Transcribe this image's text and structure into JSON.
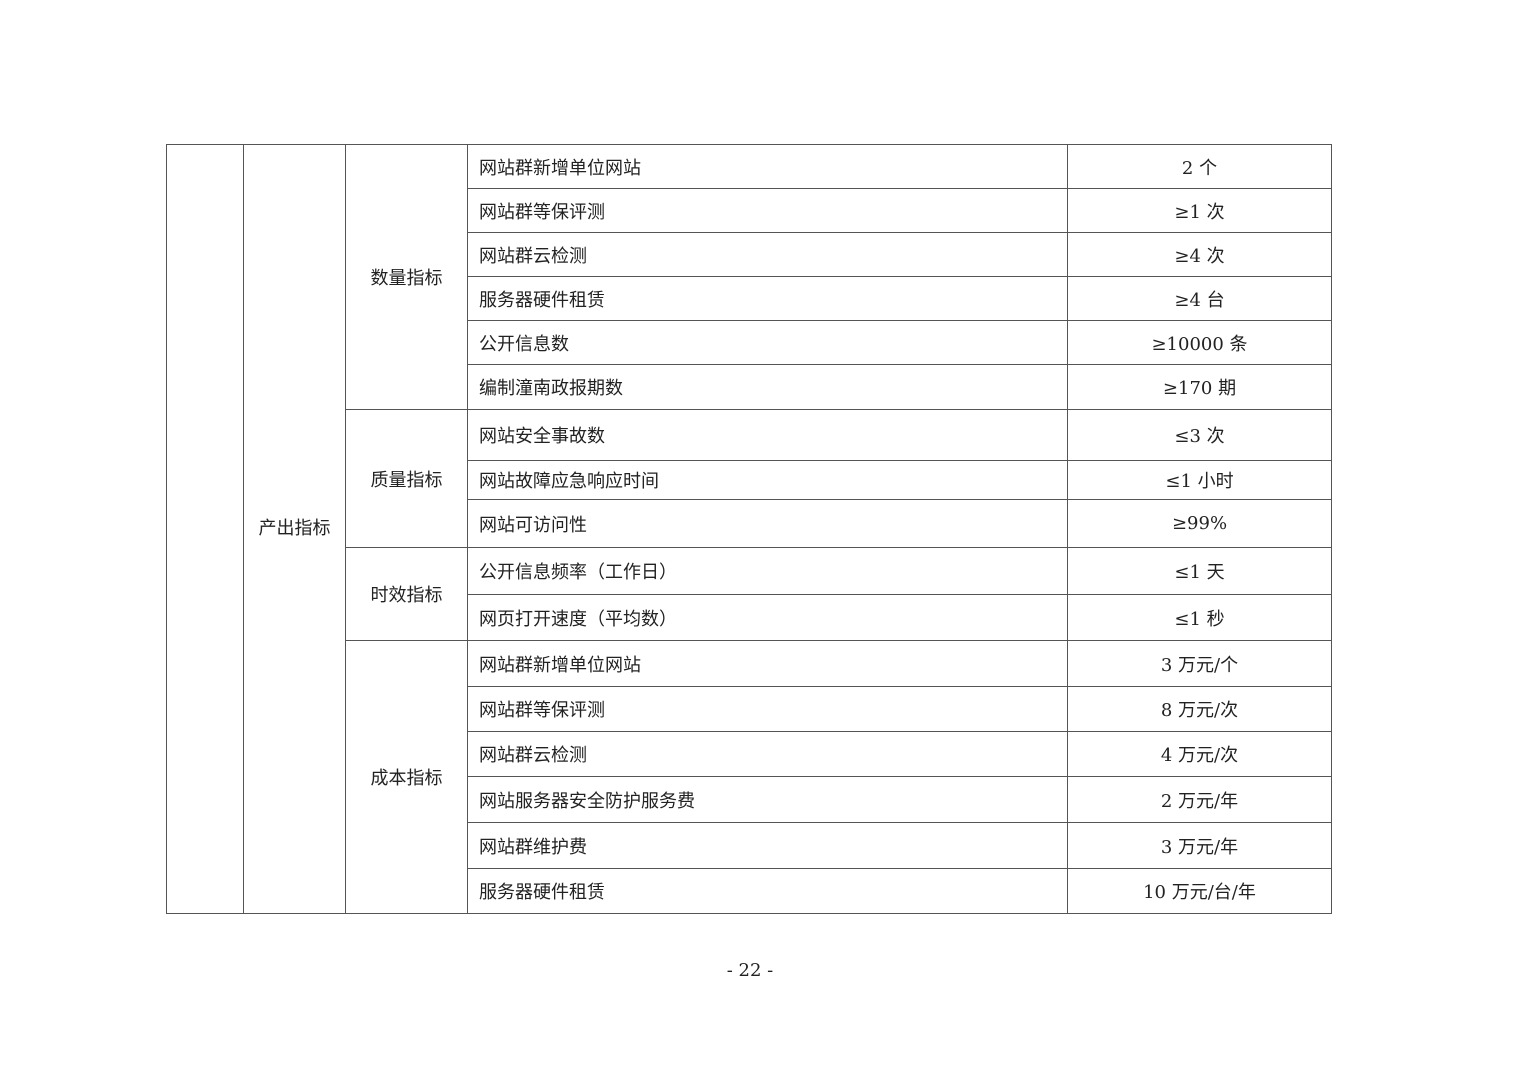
{
  "table": {
    "level1": "",
    "level2": "产出指标",
    "groups": [
      {
        "name": "数量指标",
        "rows": [
          {
            "indicator": "网站群新增单位网站",
            "value": "2 个"
          },
          {
            "indicator": "网站群等保评测",
            "value": "≥1 次"
          },
          {
            "indicator": "网站群云检测",
            "value": "≥4 次"
          },
          {
            "indicator": "服务器硬件租赁",
            "value": "≥4 台"
          },
          {
            "indicator": "公开信息数",
            "value": "≥10000 条"
          },
          {
            "indicator": "编制潼南政报期数",
            "value": "≥170 期"
          }
        ]
      },
      {
        "name": "质量指标",
        "rows": [
          {
            "indicator": "网站安全事故数",
            "value": "≤3 次"
          },
          {
            "indicator": "网站故障应急响应时间",
            "value": "≤1 小时"
          },
          {
            "indicator": "网站可访问性",
            "value": "≥99%"
          }
        ]
      },
      {
        "name": "时效指标",
        "rows": [
          {
            "indicator": "公开信息频率（工作日）",
            "value": "≤1 天"
          },
          {
            "indicator": "网页打开速度（平均数）",
            "value": "≤1 秒"
          }
        ]
      },
      {
        "name": "成本指标",
        "rows": [
          {
            "indicator": "网站群新增单位网站",
            "value": "3 万元/个"
          },
          {
            "indicator": "网站群等保评测",
            "value": "8 万元/次"
          },
          {
            "indicator": "网站群云检测",
            "value": "4 万元/次"
          },
          {
            "indicator": "网站服务器安全防护服务费",
            "value": "2 万元/年"
          },
          {
            "indicator": "网站群维护费",
            "value": "3 万元/年"
          },
          {
            "indicator": "服务器硬件租赁",
            "value": "10 万元/台/年"
          }
        ]
      }
    ]
  },
  "page_number": "- 22 -"
}
